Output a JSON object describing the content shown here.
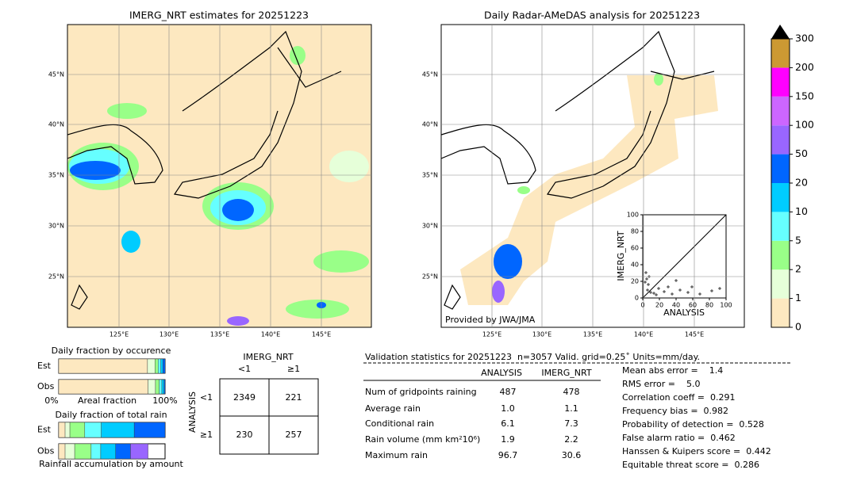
{
  "left_map": {
    "title": "IMERG_NRT estimates for 20251223",
    "lat_labels": [
      "45°N",
      "40°N",
      "35°N",
      "30°N",
      "25°N"
    ],
    "lon_labels": [
      "125°E",
      "130°E",
      "135°E",
      "140°E",
      "145°E"
    ]
  },
  "right_map": {
    "title": "Daily Radar-AMeDAS analysis for 20251223",
    "lat_labels": [
      "45°N",
      "40°N",
      "35°N",
      "30°N",
      "25°N"
    ],
    "lon_labels": [
      "125°E",
      "130°E",
      "135°E",
      "140°E",
      "145°E"
    ],
    "credit": "Provided by JWA/JMA"
  },
  "scatter": {
    "xlabel": "ANALYSIS",
    "ylabel": "IMERG_NRT",
    "lim": [
      0,
      100
    ],
    "ticks": [
      0,
      20,
      40,
      60,
      80,
      100
    ]
  },
  "colorbar": {
    "ticks": [
      0,
      1,
      2,
      5,
      10,
      20,
      50,
      100,
      150,
      200,
      300
    ],
    "colors": [
      "#fde8c0",
      "#e6ffd9",
      "#99ff88",
      "#66ffff",
      "#00ccff",
      "#0066ff",
      "#9966ff",
      "#cc66ff",
      "#ff00ff",
      "#cc9933"
    ]
  },
  "occurrence": {
    "title": "Daily fraction by occurence",
    "rows": [
      "Est",
      "Obs"
    ],
    "est": [
      83.5,
      7,
      3,
      2.5,
      2,
      2
    ],
    "obs": [
      84,
      7,
      3.5,
      2.5,
      2,
      1
    ],
    "x_labels": [
      "0%",
      "Areal fraction",
      "100%"
    ]
  },
  "total_rain": {
    "title": "Daily fraction of total rain",
    "rows": [
      "Est",
      "Obs"
    ],
    "est": [
      6,
      4.5,
      14,
      15.5,
      31,
      29
    ],
    "obs": [
      6,
      9,
      15.5,
      9,
      14,
      14,
      16.5
    ],
    "footer": "Rainfall accumulation by amount"
  },
  "contingency": {
    "col_title": "IMERG_NRT",
    "row_title": "ANALYSIS",
    "cols": [
      "<1",
      "≥1"
    ],
    "rows": [
      "<1",
      "≥1"
    ],
    "cells": [
      [
        "2349",
        "221"
      ],
      [
        "230",
        "257"
      ]
    ]
  },
  "stats": {
    "header": "Validation statistics for 20251223  n=3057 Valid. grid=0.25˚ Units=mm/day.",
    "columns": [
      "ANALYSIS",
      "IMERG_NRT"
    ],
    "rows": [
      {
        "label": "Num of gridpoints raining",
        "values": [
          "487",
          "478"
        ]
      },
      {
        "label": "Average rain",
        "values": [
          "1.0",
          "1.1"
        ]
      },
      {
        "label": "Conditional rain",
        "values": [
          "6.1",
          "7.3"
        ]
      },
      {
        "label": "Rain volume (mm km²10⁶)",
        "values": [
          "1.9",
          "2.2"
        ]
      },
      {
        "label": "Maximum rain",
        "values": [
          "96.7",
          "30.6"
        ]
      }
    ],
    "scores": [
      "Mean abs error =    1.4",
      "RMS error =    5.0",
      "Correlation coeff =  0.291",
      "Frequency bias =  0.982",
      "Probability of detection =  0.528",
      "False alarm ratio =  0.462",
      "Hanssen & Kuipers score =  0.442",
      "Equitable threat score =  0.286"
    ]
  }
}
